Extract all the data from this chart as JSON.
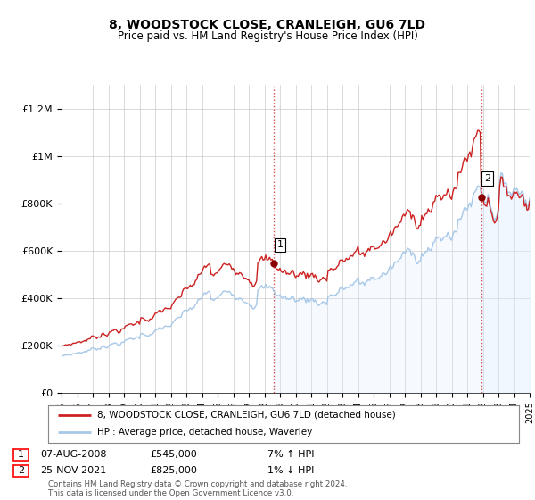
{
  "title": "8, WOODSTOCK CLOSE, CRANLEIGH, GU6 7LD",
  "subtitle": "Price paid vs. HM Land Registry's House Price Index (HPI)",
  "legend_line1": "8, WOODSTOCK CLOSE, CRANLEIGH, GU6 7LD (detached house)",
  "legend_line2": "HPI: Average price, detached house, Waverley",
  "annotation1_date": "07-AUG-2008",
  "annotation1_price": "£545,000",
  "annotation1_hpi": "7% ↑ HPI",
  "annotation1_year": 2008.6,
  "annotation1_value": 545000,
  "annotation2_date": "25-NOV-2021",
  "annotation2_price": "£825,000",
  "annotation2_hpi": "1% ↓ HPI",
  "annotation2_year": 2021.9,
  "annotation2_value": 825000,
  "footer": "Contains HM Land Registry data © Crown copyright and database right 2024.\nThis data is licensed under the Open Government Licence v3.0.",
  "ylim": [
    0,
    1300000
  ],
  "yticks": [
    0,
    200000,
    400000,
    600000,
    800000,
    1000000,
    1200000
  ],
  "ytick_labels": [
    "£0",
    "£200K",
    "£400K",
    "£600K",
    "£800K",
    "£1M",
    "£1.2M"
  ],
  "hpi_color": "#a8c8e8",
  "hpi_fill_color": "#ddeeff",
  "price_color": "#cc2222",
  "background_color": "#ffffff",
  "grid_color": "#cccccc",
  "annotation_line_color": "#cc2222"
}
